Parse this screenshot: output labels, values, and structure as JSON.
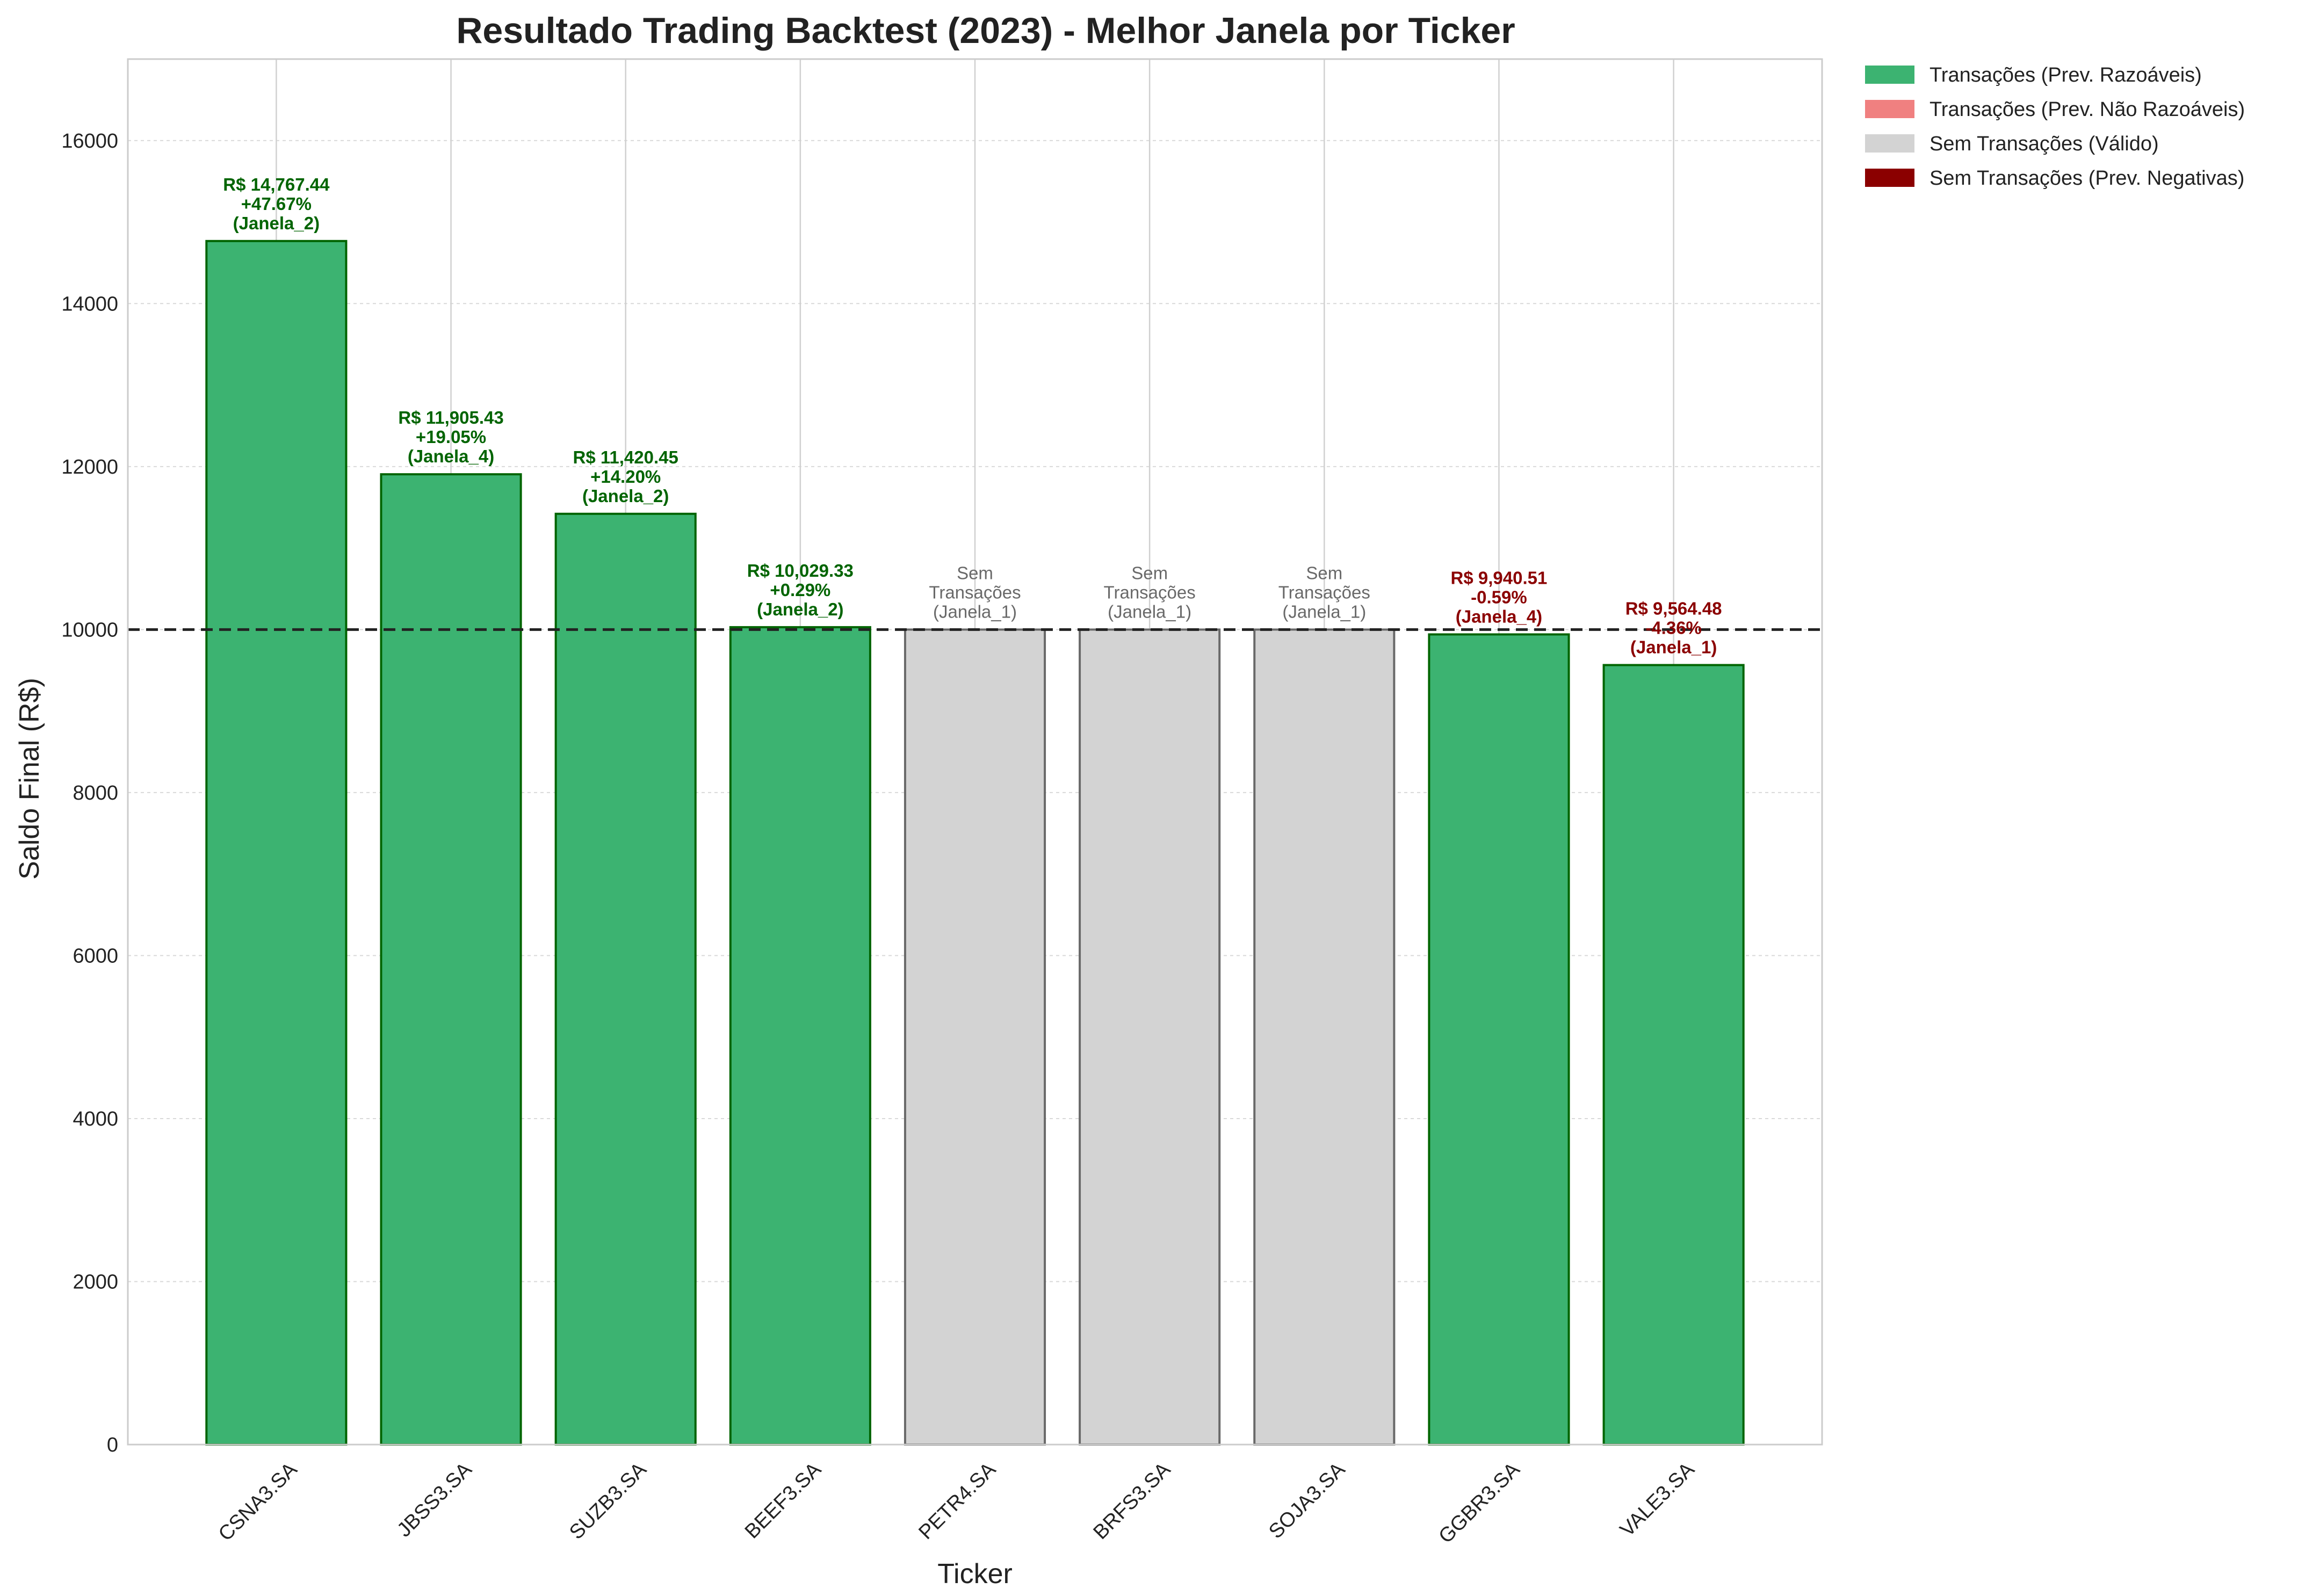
{
  "chart_data": {
    "type": "bar",
    "title": "Resultado Trading Backtest (2023) - Melhor Janela por Ticker",
    "xlabel": "Ticker",
    "ylabel": "Saldo Final (R$)",
    "ylim": [
      0,
      17000
    ],
    "yticks": [
      0,
      2000,
      4000,
      6000,
      8000,
      10000,
      12000,
      14000,
      16000
    ],
    "grid": true,
    "reference_line": 10000,
    "legend_position": "outside-top-right",
    "legend": [
      {
        "label": "Transações (Prev. Razoáveis)",
        "color": "#3cb371"
      },
      {
        "label": "Transações (Prev. Não Razoáveis)",
        "color": "#f08080"
      },
      {
        "label": "Sem Transações (Válido)",
        "color": "#d3d3d3"
      },
      {
        "label": "Sem Transações (Prev. Negativas)",
        "color": "#8b0000"
      }
    ],
    "categories": [
      "CSNA3.SA",
      "JBSS3.SA",
      "SUZB3.SA",
      "BEEF3.SA",
      "PETR4.SA",
      "BRFS3.SA",
      "SOJA3.SA",
      "GGBR3.SA",
      "VALE3.SA"
    ],
    "values": [
      14767.44,
      11905.43,
      11420.45,
      10029.33,
      10000,
      10000,
      10000,
      9940.51,
      9564.48
    ],
    "bar_colors": [
      "#3cb371",
      "#3cb371",
      "#3cb371",
      "#3cb371",
      "#d3d3d3",
      "#d3d3d3",
      "#d3d3d3",
      "#3cb371",
      "#3cb371"
    ],
    "edge_colors": [
      "#006400",
      "#006400",
      "#006400",
      "#006400",
      "#696969",
      "#696969",
      "#696969",
      "#006400",
      "#006400"
    ],
    "annotations": [
      {
        "lines": [
          "R$ 14,767.44",
          "+47.67%",
          "(Janela_2)"
        ],
        "color": "#006400",
        "bold": true
      },
      {
        "lines": [
          "R$ 11,905.43",
          "+19.05%",
          "(Janela_4)"
        ],
        "color": "#006400",
        "bold": true
      },
      {
        "lines": [
          "R$ 11,420.45",
          "+14.20%",
          "(Janela_2)"
        ],
        "color": "#006400",
        "bold": true
      },
      {
        "lines": [
          "R$ 10,029.33",
          "+0.29%",
          "(Janela_2)"
        ],
        "color": "#006400",
        "bold": true
      },
      {
        "lines": [
          "Sem",
          "Transações",
          "(Janela_1)"
        ],
        "color": "#696969",
        "bold": false
      },
      {
        "lines": [
          "Sem",
          "Transações",
          "(Janela_1)"
        ],
        "color": "#696969",
        "bold": false
      },
      {
        "lines": [
          "Sem",
          "Transações",
          "(Janela_1)"
        ],
        "color": "#696969",
        "bold": false
      },
      {
        "lines": [
          "R$ 9,940.51",
          "-0.59%",
          "(Janela_4)"
        ],
        "color": "#8b0000",
        "bold": true
      },
      {
        "lines": [
          "R$ 9,564.48",
          "-4.36%",
          "(Janela_1)"
        ],
        "color": "#8b0000",
        "bold": true
      }
    ]
  }
}
